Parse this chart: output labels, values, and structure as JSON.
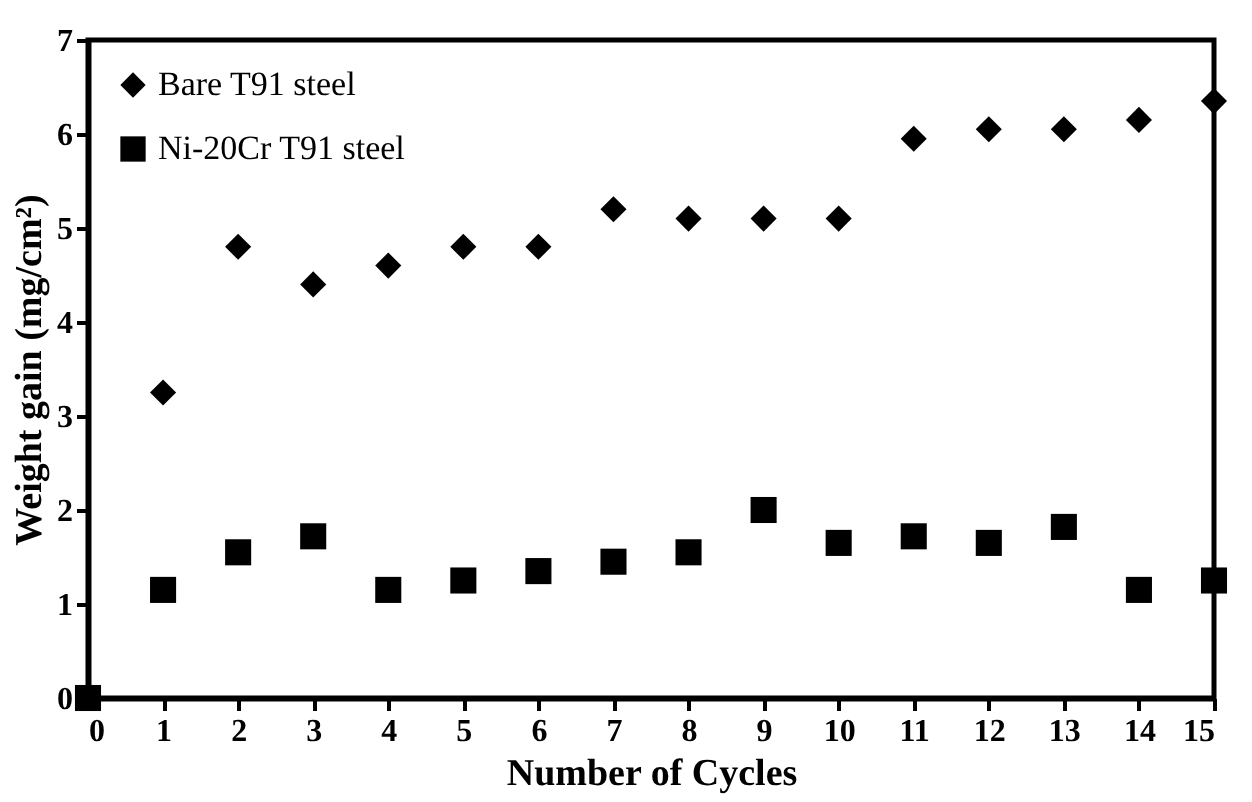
{
  "chart_data": {
    "type": "scatter",
    "xlabel": "Number of Cycles",
    "ylabel": "Weight gain (mg/cm²)",
    "x": [
      0,
      1,
      2,
      3,
      4,
      5,
      6,
      7,
      8,
      9,
      10,
      11,
      12,
      13,
      14,
      15
    ],
    "series": [
      {
        "name": "Bare T91 steel",
        "color": "#000000",
        "marker": "diamond",
        "values": [
          null,
          3.25,
          4.8,
          4.4,
          4.6,
          4.8,
          4.8,
          5.2,
          5.1,
          5.1,
          5.1,
          5.95,
          6.05,
          6.05,
          6.15,
          6.35
        ]
      },
      {
        "name": "Ni-20Cr T91 steel",
        "color": "#000000",
        "marker": "square",
        "values": [
          0,
          1.15,
          1.55,
          1.72,
          1.15,
          1.25,
          1.35,
          1.45,
          1.55,
          2.0,
          1.65,
          1.72,
          1.65,
          1.82,
          1.15,
          1.25
        ]
      }
    ],
    "xlim": [
      0,
      15
    ],
    "xticks": [
      0,
      1,
      2,
      3,
      4,
      5,
      6,
      7,
      8,
      9,
      10,
      11,
      12,
      13,
      14,
      15
    ],
    "ylim": [
      0,
      7
    ],
    "yticks": [
      0,
      1,
      2,
      3,
      4,
      5,
      6,
      7
    ],
    "grid": false,
    "legend": "top left"
  }
}
